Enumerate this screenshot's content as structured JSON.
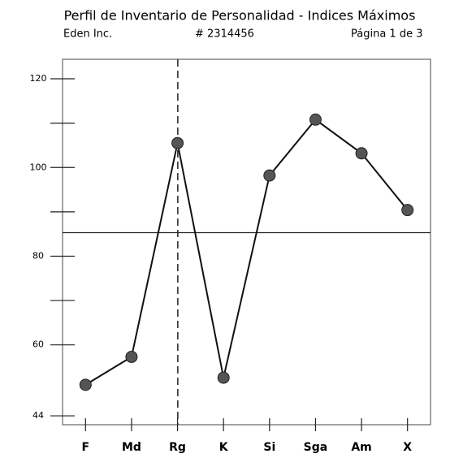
{
  "chart_data": {
    "type": "line",
    "title": "Perfil de Inventario de Personalidad - Indices Máximos",
    "company": "Eden Inc.",
    "id_number": "# 2314456",
    "page": "Página 1 de 3",
    "categories": [
      "F",
      "Md",
      "Rg",
      "K",
      "Si",
      "Sga",
      "Am",
      "X"
    ],
    "values": [
      51,
      57.3,
      105.5,
      52.6,
      98.2,
      110.8,
      103.2,
      90.4
    ],
    "color": "#555555",
    "reference_line": 85.3,
    "ylim": [
      42,
      124.4
    ],
    "yticks": [
      44,
      60,
      70,
      80,
      90,
      100,
      110,
      120
    ]
  }
}
